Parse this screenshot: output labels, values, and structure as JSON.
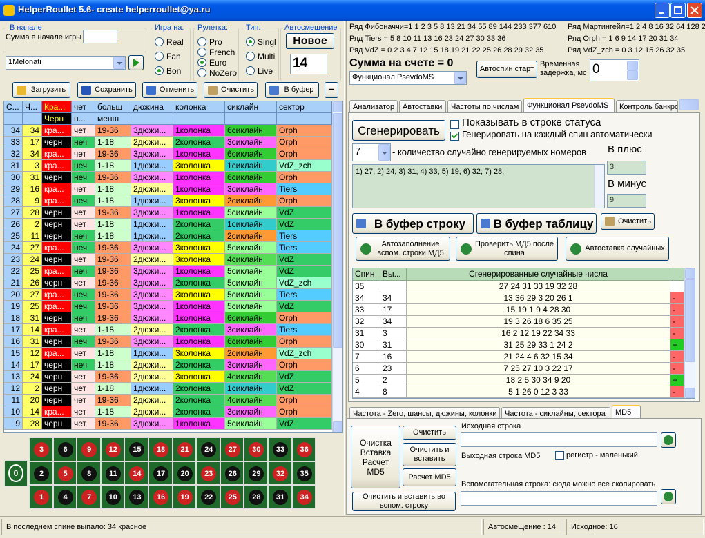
{
  "window": {
    "title": "HelperRoullet 5.6- create helperroullet@ya.ru"
  },
  "left": {
    "start_group": {
      "title": "В начале",
      "label": "Сумма в начале игры"
    },
    "game": {
      "title": "Игра на:",
      "options": [
        "Real",
        "Fan",
        "Bon"
      ],
      "selected": 2
    },
    "roulette": {
      "title": "Рулетка:",
      "options": [
        "Pro",
        "French",
        "Euro",
        "NoZero"
      ],
      "selected": 2
    },
    "type": {
      "title": "Тип:",
      "options": [
        "Singl",
        "Multi",
        "Live"
      ],
      "selected": 0
    },
    "autoshift": {
      "title": "Автосмещение",
      "button": "Новое",
      "value": 14
    },
    "profile": "1Melonati",
    "toolbar": [
      "Загрузить",
      "Сохранить",
      "Отменить",
      "Очистить",
      "В буфер",
      "−"
    ],
    "history": {
      "headers": [
        "С...",
        "Ч...",
        "Кра...",
        "чет",
        "больш",
        "дюжина",
        "колонка",
        "сиклайн",
        "сектор"
      ],
      "subheaders": [
        null,
        null,
        "Черн",
        "н...",
        "менш",
        null,
        null,
        null,
        null
      ],
      "column_colors": [
        "#a8d0f8",
        "#ffff66",
        null,
        null,
        null,
        null,
        null,
        null,
        null
      ],
      "palette": {
        "кра...": "#ff0000",
        "черн": "#000000",
        "чет": "#ffe4e4",
        "неч": "#33cc66",
        "19-36": "#ff9966",
        "1-18": "#ccffcc",
        "1дюжи...": "#99ccff",
        "2дюжи...": "#ffff99",
        "3дюжи...": "#ff88ff",
        "1колонка": "#ff33ff",
        "2колонка": "#33cc66",
        "3колонка": "#ffff00",
        "1сиклайн": "#33cccc",
        "2сиклайн": "#ff9933",
        "3сиклайн": "#ff66ff",
        "4сиклайн": "#55dd55",
        "5сиклайн": "#99ff99",
        "6сиклайн": "#33cc33",
        "Orph": "#ff9966",
        "VdZ_zch": "#99ffcc",
        "Tiers": "#55ccff",
        "VdZ": "#33cc66"
      },
      "rows": [
        [
          34,
          34,
          "кра...",
          "чет",
          "19-36",
          "3дюжи...",
          "1колонка",
          "6сиклайн",
          "Orph"
        ],
        [
          33,
          17,
          "черн",
          "неч",
          "1-18",
          "2дюжи...",
          "2колонка",
          "3сиклайн",
          "Orph"
        ],
        [
          32,
          34,
          "кра...",
          "чет",
          "19-36",
          "3дюжи...",
          "1колонка",
          "6сиклайн",
          "Orph"
        ],
        [
          31,
          3,
          "кра...",
          "неч",
          "1-18",
          "1дюжи...",
          "3колонка",
          "1сиклайн",
          "VdZ_zch"
        ],
        [
          30,
          31,
          "черн",
          "неч",
          "19-36",
          "3дюжи...",
          "1колонка",
          "6сиклайн",
          "Orph"
        ],
        [
          29,
          16,
          "кра...",
          "чет",
          "1-18",
          "2дюжи...",
          "1колонка",
          "3сиклайн",
          "Tiers"
        ],
        [
          28,
          9,
          "кра...",
          "неч",
          "1-18",
          "1дюжи...",
          "3колонка",
          "2сиклайн",
          "Orph"
        ],
        [
          27,
          28,
          "черн",
          "чет",
          "19-36",
          "3дюжи...",
          "1колонка",
          "5сиклайн",
          "VdZ"
        ],
        [
          26,
          2,
          "черн",
          "чет",
          "1-18",
          "1дюжи...",
          "2колонка",
          "1сиклайн",
          "VdZ"
        ],
        [
          25,
          11,
          "черн",
          "неч",
          "1-18",
          "1дюжи...",
          "2колонка",
          "2сиклайн",
          "Tiers"
        ],
        [
          24,
          27,
          "кра...",
          "неч",
          "19-36",
          "3дюжи...",
          "3колонка",
          "5сиклайн",
          "Tiers"
        ],
        [
          23,
          24,
          "черн",
          "чет",
          "19-36",
          "2дюжи...",
          "3колонка",
          "4сиклайн",
          "VdZ"
        ],
        [
          22,
          25,
          "кра...",
          "неч",
          "19-36",
          "3дюжи...",
          "1колонка",
          "5сиклайн",
          "VdZ"
        ],
        [
          21,
          26,
          "черн",
          "чет",
          "19-36",
          "3дюжи...",
          "2колонка",
          "5сиклайн",
          "VdZ_zch"
        ],
        [
          20,
          27,
          "кра...",
          "неч",
          "19-36",
          "3дюжи...",
          "3колонка",
          "5сиклайн",
          "Tiers"
        ],
        [
          19,
          25,
          "кра...",
          "неч",
          "19-36",
          "3дюжи...",
          "1колонка",
          "5сиклайн",
          "VdZ"
        ],
        [
          18,
          31,
          "черн",
          "неч",
          "19-36",
          "3дюжи...",
          "1колонка",
          "6сиклайн",
          "Orph"
        ],
        [
          17,
          14,
          "кра...",
          "чет",
          "1-18",
          "2дюжи...",
          "2колонка",
          "3сиклайн",
          "Tiers"
        ],
        [
          16,
          31,
          "черн",
          "неч",
          "19-36",
          "3дюжи...",
          "1колонка",
          "6сиклайн",
          "Orph"
        ],
        [
          15,
          12,
          "кра...",
          "чет",
          "1-18",
          "1дюжи...",
          "3колонка",
          "2сиклайн",
          "VdZ_zch"
        ],
        [
          14,
          17,
          "черн",
          "неч",
          "1-18",
          "2дюжи...",
          "2колонка",
          "3сиклайн",
          "Orph"
        ],
        [
          13,
          24,
          "черн",
          "чет",
          "19-36",
          "2дюжи...",
          "3колонка",
          "4сиклайн",
          "VdZ"
        ],
        [
          12,
          2,
          "черн",
          "чет",
          "1-18",
          "1дюжи...",
          "2колонка",
          "1сиклайн",
          "VdZ"
        ],
        [
          11,
          20,
          "черн",
          "чет",
          "19-36",
          "2дюжи...",
          "2колонка",
          "4сиклайн",
          "Orph"
        ],
        [
          10,
          14,
          "кра...",
          "чет",
          "1-18",
          "2дюжи...",
          "2колонка",
          "3сиклайн",
          "Orph"
        ],
        [
          9,
          28,
          "черн",
          "чет",
          "19-36",
          "3дюжи...",
          "1колонка",
          "5сиклайн",
          "VdZ"
        ]
      ]
    },
    "board": {
      "zero": 0,
      "chip_colors": {
        "red": "#cc2222",
        "black": "#111111"
      },
      "rows": [
        [
          {
            "n": 3,
            "c": "red"
          },
          {
            "n": 6,
            "c": "black"
          },
          {
            "n": 9,
            "c": "red"
          },
          {
            "n": 12,
            "c": "red"
          },
          {
            "n": 15,
            "c": "black"
          },
          {
            "n": 18,
            "c": "red"
          },
          {
            "n": 21,
            "c": "red"
          },
          {
            "n": 24,
            "c": "black"
          },
          {
            "n": 27,
            "c": "red"
          },
          {
            "n": 30,
            "c": "red"
          },
          {
            "n": 33,
            "c": "black"
          },
          {
            "n": 36,
            "c": "red"
          }
        ],
        [
          {
            "n": 2,
            "c": "black"
          },
          {
            "n": 5,
            "c": "red"
          },
          {
            "n": 8,
            "c": "black"
          },
          {
            "n": 11,
            "c": "black"
          },
          {
            "n": 14,
            "c": "red"
          },
          {
            "n": 17,
            "c": "black"
          },
          {
            "n": 20,
            "c": "black"
          },
          {
            "n": 23,
            "c": "red"
          },
          {
            "n": 26,
            "c": "black"
          },
          {
            "n": 29,
            "c": "black"
          },
          {
            "n": 32,
            "c": "red"
          },
          {
            "n": 35,
            "c": "black"
          }
        ],
        [
          {
            "n": 1,
            "c": "red"
          },
          {
            "n": 4,
            "c": "black"
          },
          {
            "n": 7,
            "c": "red"
          },
          {
            "n": 10,
            "c": "black"
          },
          {
            "n": 13,
            "c": "black"
          },
          {
            "n": 16,
            "c": "red"
          },
          {
            "n": 19,
            "c": "red"
          },
          {
            "n": 22,
            "c": "black"
          },
          {
            "n": 25,
            "c": "red"
          },
          {
            "n": 28,
            "c": "black"
          },
          {
            "n": 31,
            "c": "black"
          },
          {
            "n": 34,
            "c": "red"
          }
        ]
      ]
    }
  },
  "right": {
    "series_info": [
      "Ряд Фибоначчи=1 1 2 3 5 8 13 21 34 55 89 144 233 377 610",
      "Ряд Мартингейл=1 2 4 8 16 32 64 128 2",
      "Ряд Tiers = 5 8 10 11 13 16 23 24 27 30 33 36",
      "Ряд Orph = 1 6 9 14 17 20 31 34",
      "Ряд VdZ = 0 2 3 4 7 12 15 18 19 21 22 25 26 28 29 32 35",
      "Ряд VdZ_zch = 0 3 12 15 26 32 35"
    ],
    "balance": "Сумма на счете = 0",
    "mode": "Функционал PsevdoMS",
    "autospin": "Автоспин старт",
    "delay_label": "Временная задержка, мс",
    "delay": 0,
    "tabs": {
      "items": [
        "Анализатор",
        "Автоставки",
        "Частоты по числам",
        "Функционал PsevdoMS",
        "Контроль банкро"
      ],
      "active": 3
    },
    "generator": {
      "button": "Сгенерировать",
      "show_status": {
        "label": "Показывать в строке статуса",
        "checked": false
      },
      "auto": {
        "label": "Генерировать на каждый спин автоматически",
        "checked": true
      },
      "count": 7,
      "count_label": "- количество случайно генерируемых номеров",
      "plus_label": "В плюс",
      "plus": 3,
      "minus_label": "В минус",
      "minus": 9,
      "output": "1) 27; 2) 24; 3) 31; 4) 33; 5) 19; 6) 32; 7) 28;",
      "buttons": [
        "В буфер строку",
        "В буфер таблицу",
        "Очистить"
      ],
      "actions": [
        "Автозаполнение вспом. строки МД5",
        "Проверить МД5 после спина",
        "Автоставка случайных"
      ],
      "table": {
        "headers": [
          "Спин",
          "Вы...",
          "Сгенерированные случайные числа",
          null
        ],
        "palette": {
          "-": "#ff6666",
          "+": "#22cc22"
        },
        "rows": [
          [
            35,
            null,
            "27  24  31  33  19  32  28",
            null
          ],
          [
            34,
            34,
            "13  36  29  3  20  26  1",
            "-"
          ],
          [
            33,
            17,
            "15  19  1  9  4  28  30",
            "-"
          ],
          [
            32,
            34,
            "19  3  26  18  6  35  25",
            "-"
          ],
          [
            31,
            3,
            "16  2  12  19  22  34  33",
            "-"
          ],
          [
            30,
            31,
            "31  25  29  33  1  24  2",
            "+"
          ],
          [
            7,
            16,
            "21  24  4  6  32  15  34",
            "-"
          ],
          [
            6,
            23,
            "7  25  27  10  3  22  17",
            "-"
          ],
          [
            5,
            2,
            "18  2  5  30  34  9  20",
            "+"
          ],
          [
            4,
            8,
            "5  1  26  0  12  3  33",
            "-"
          ]
        ]
      }
    },
    "md5": {
      "tabs": [
        "Частота - Zero, шансы, дюжины, колонки",
        "Частота - сиклайны, сектора",
        "MD5"
      ],
      "active": 2,
      "big_button": "Очистка Вставка Расчет MD5",
      "clear": "Очистить",
      "clear_paste": "Очистить и вставить",
      "calc": "Расчет MD5",
      "source_label": "Исходная строка",
      "output_label": "Выходная строка MD5",
      "lowercase": {
        "label": "регистр - маленький",
        "checked": false
      },
      "aux_label": "Вспомогательная строка: сюда можно все скопировать",
      "aux_button": "Очистить и вставить во вспом. строку"
    }
  },
  "status": [
    "В последнем спине выпало: 34 красное",
    "Автосмещение : 14",
    "Исходное: 16"
  ]
}
